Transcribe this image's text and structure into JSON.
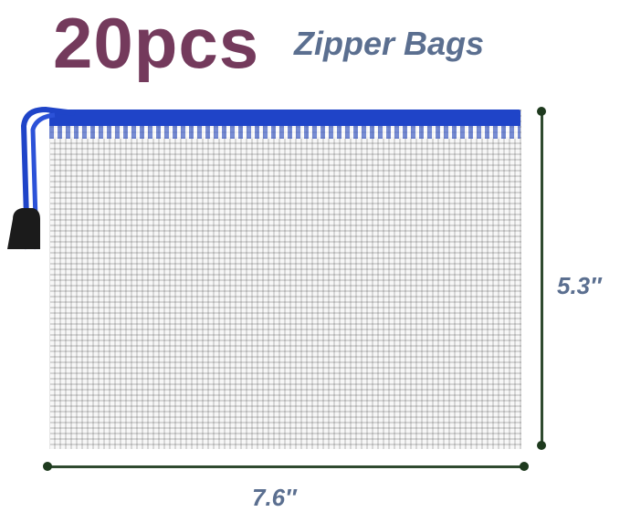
{
  "title": {
    "count": "20pcs",
    "product": "Zipper Bags"
  },
  "dimensions": {
    "height": "5.3″",
    "width": "7.6″"
  },
  "colors": {
    "title": "#743a5c",
    "subtitle": "#5b6f90",
    "zipper": "#1f44c8",
    "dimension_line": "#2f4a2f"
  }
}
